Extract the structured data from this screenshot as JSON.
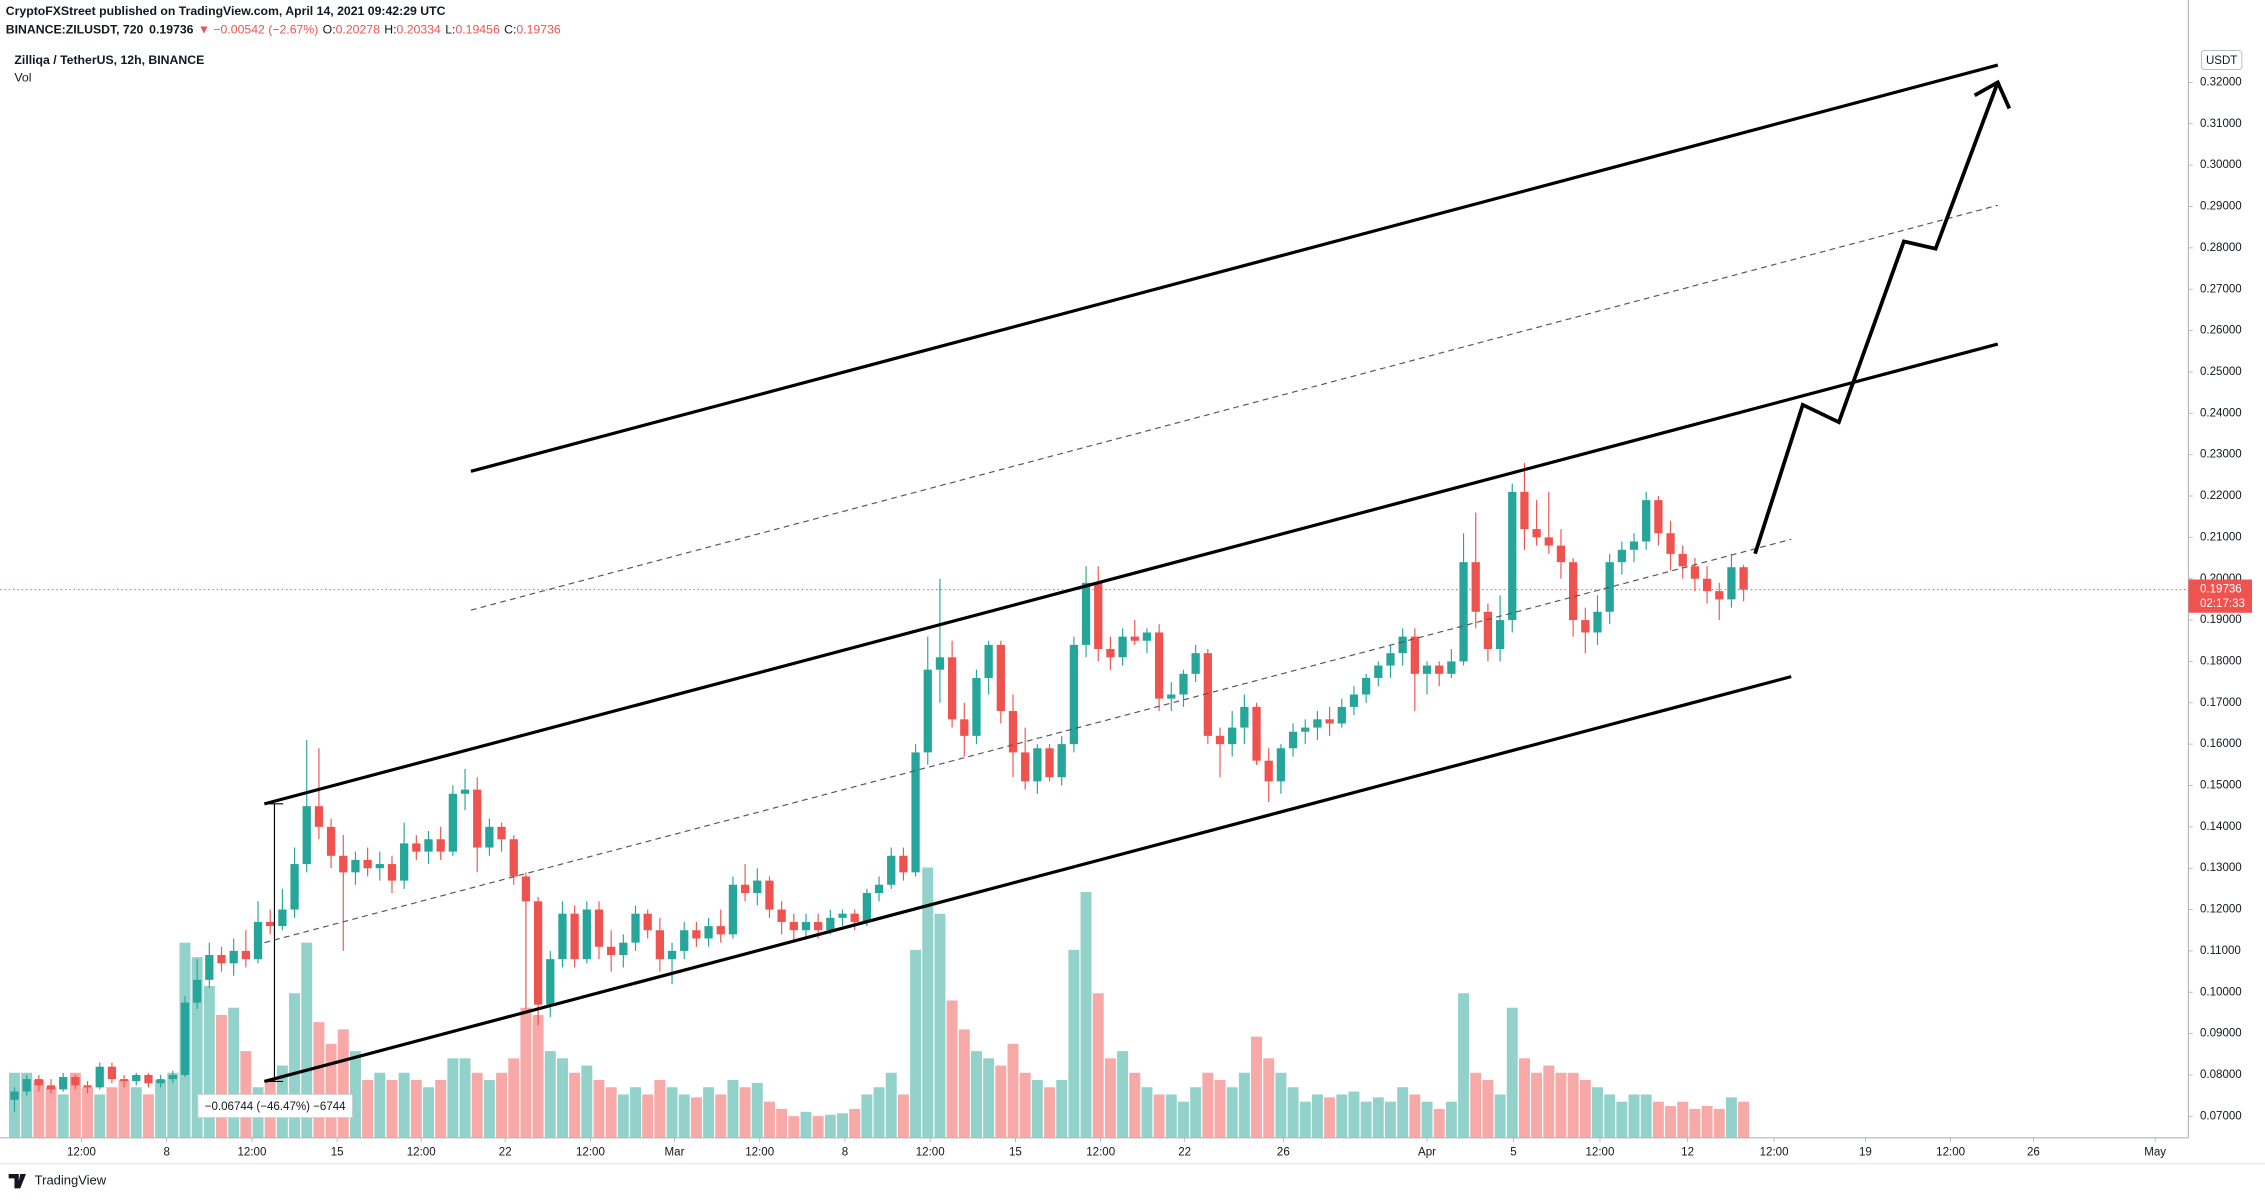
{
  "header": {
    "publisher": "CryptoFXStreet published on TradingView.com, April 14, 2021 09:42:29 UTC",
    "symbol": "BINANCE:ZILUSDT, 720",
    "change": "▼ −0.00542 (−2.67%)",
    "ohlc_names": [
      "O:",
      "H:",
      "L:",
      "C:"
    ]
  },
  "chart_data": {
    "type": "candlestick",
    "title": "Zilliqa / TetherUS, 12h, BINANCE",
    "volume_label": "Vol",
    "y_unit": "USDT",
    "countdown": "02:17:33",
    "measure_label": "−0.06744 (−46.47%) −6744",
    "up_color": "#26a69a",
    "down_color": "#ef5350",
    "volume_up_color": "#93d2cb",
    "volume_down_color": "#f7a9a7",
    "open": [
      0.074,
      0.076,
      0.079,
      0.0775,
      0.0765,
      0.0795,
      0.0775,
      0.077,
      0.082,
      0.079,
      0.0785,
      0.08,
      0.078,
      0.079,
      0.08,
      0.0975,
      0.103,
      0.109,
      0.107,
      0.11,
      0.108,
      0.117,
      0.116,
      0.12,
      0.131,
      0.145,
      0.14,
      0.133,
      0.129,
      0.132,
      0.13,
      0.131,
      0.127,
      0.136,
      0.134,
      0.137,
      0.134,
      0.148,
      0.149,
      0.135,
      0.14,
      0.137,
      0.128,
      0.122,
      0.097,
      0.108,
      0.119,
      0.108,
      0.12,
      0.111,
      0.109,
      0.112,
      0.119,
      0.115,
      0.108,
      0.11,
      0.115,
      0.113,
      0.116,
      0.114,
      0.126,
      0.124,
      0.127,
      0.12,
      0.117,
      0.115,
      0.117,
      0.115,
      0.118,
      0.119,
      0.117,
      0.124,
      0.126,
      0.133,
      0.129,
      0.158,
      0.178,
      0.181,
      0.166,
      0.162,
      0.176,
      0.184,
      0.168,
      0.158,
      0.151,
      0.159,
      0.152,
      0.16,
      0.184,
      0.199,
      0.183,
      0.181,
      0.186,
      0.185,
      0.187,
      0.171,
      0.172,
      0.177,
      0.182,
      0.162,
      0.16,
      0.164,
      0.169,
      0.156,
      0.151,
      0.159,
      0.163,
      0.164,
      0.166,
      0.165,
      0.169,
      0.172,
      0.176,
      0.179,
      0.182,
      0.186,
      0.177,
      0.179,
      0.177,
      0.18,
      0.204,
      0.192,
      0.183,
      0.19,
      0.221,
      0.212,
      0.21,
      0.208,
      0.204,
      0.19,
      0.187,
      0.192,
      0.204,
      0.207,
      0.209,
      0.219,
      0.211,
      0.206,
      0.203,
      0.2,
      0.197,
      0.195,
      0.20278
    ],
    "high": [
      0.077,
      0.08,
      0.08,
      0.079,
      0.0805,
      0.08,
      0.0785,
      0.083,
      0.083,
      0.08,
      0.0805,
      0.0805,
      0.08,
      0.081,
      0.099,
      0.108,
      0.112,
      0.111,
      0.113,
      0.115,
      0.122,
      0.12,
      0.125,
      0.135,
      0.161,
      0.159,
      0.142,
      0.138,
      0.134,
      0.135,
      0.134,
      0.133,
      0.141,
      0.138,
      0.139,
      0.14,
      0.15,
      0.154,
      0.152,
      0.142,
      0.141,
      0.138,
      0.129,
      0.123,
      0.11,
      0.122,
      0.121,
      0.122,
      0.122,
      0.115,
      0.114,
      0.121,
      0.12,
      0.118,
      0.112,
      0.117,
      0.117,
      0.118,
      0.12,
      0.128,
      0.131,
      0.13,
      0.128,
      0.122,
      0.119,
      0.119,
      0.119,
      0.12,
      0.12,
      0.12,
      0.125,
      0.128,
      0.135,
      0.135,
      0.16,
      0.186,
      0.2,
      0.185,
      0.17,
      0.178,
      0.185,
      0.185,
      0.172,
      0.164,
      0.16,
      0.16,
      0.162,
      0.186,
      0.203,
      0.203,
      0.186,
      0.188,
      0.19,
      0.188,
      0.189,
      0.175,
      0.178,
      0.184,
      0.183,
      0.164,
      0.168,
      0.172,
      0.17,
      0.159,
      0.16,
      0.165,
      0.166,
      0.168,
      0.169,
      0.171,
      0.174,
      0.177,
      0.18,
      0.184,
      0.188,
      0.188,
      0.18,
      0.18,
      0.183,
      0.211,
      0.216,
      0.194,
      0.196,
      0.223,
      0.228,
      0.219,
      0.221,
      0.212,
      0.205,
      0.193,
      0.196,
      0.206,
      0.209,
      0.211,
      0.221,
      0.22,
      0.214,
      0.208,
      0.205,
      0.203,
      0.199,
      0.206,
      0.20334
    ],
    "low": [
      0.071,
      0.075,
      0.076,
      0.0755,
      0.076,
      0.0765,
      0.0755,
      0.0765,
      0.078,
      0.077,
      0.0775,
      0.077,
      0.077,
      0.078,
      0.0795,
      0.096,
      0.101,
      0.105,
      0.104,
      0.106,
      0.107,
      0.114,
      0.115,
      0.118,
      0.129,
      0.137,
      0.13,
      0.11,
      0.126,
      0.128,
      0.127,
      0.124,
      0.125,
      0.132,
      0.131,
      0.132,
      0.133,
      0.144,
      0.129,
      0.133,
      0.134,
      0.126,
      0.096,
      0.092,
      0.094,
      0.106,
      0.106,
      0.107,
      0.108,
      0.105,
      0.106,
      0.11,
      0.113,
      0.105,
      0.102,
      0.108,
      0.111,
      0.111,
      0.112,
      0.113,
      0.122,
      0.121,
      0.118,
      0.114,
      0.112,
      0.113,
      0.113,
      0.114,
      0.116,
      0.115,
      0.116,
      0.122,
      0.125,
      0.127,
      0.128,
      0.155,
      0.17,
      0.164,
      0.157,
      0.16,
      0.172,
      0.165,
      0.152,
      0.149,
      0.148,
      0.151,
      0.15,
      0.158,
      0.181,
      0.18,
      0.178,
      0.179,
      0.184,
      0.182,
      0.168,
      0.168,
      0.169,
      0.175,
      0.16,
      0.152,
      0.157,
      0.16,
      0.155,
      0.146,
      0.148,
      0.157,
      0.16,
      0.161,
      0.162,
      0.164,
      0.167,
      0.17,
      0.174,
      0.176,
      0.179,
      0.168,
      0.172,
      0.174,
      0.176,
      0.179,
      0.188,
      0.18,
      0.18,
      0.187,
      0.207,
      0.208,
      0.206,
      0.2,
      0.186,
      0.182,
      0.184,
      0.189,
      0.201,
      0.204,
      0.207,
      0.208,
      0.202,
      0.2,
      0.197,
      0.194,
      0.19,
      0.193,
      0.19456
    ],
    "close": [
      0.076,
      0.079,
      0.0775,
      0.0765,
      0.0795,
      0.0775,
      0.077,
      0.082,
      0.079,
      0.0785,
      0.08,
      0.078,
      0.079,
      0.08,
      0.0975,
      0.103,
      0.109,
      0.107,
      0.11,
      0.108,
      0.117,
      0.116,
      0.12,
      0.131,
      0.145,
      0.14,
      0.133,
      0.129,
      0.132,
      0.13,
      0.131,
      0.127,
      0.136,
      0.134,
      0.137,
      0.134,
      0.148,
      0.149,
      0.135,
      0.14,
      0.137,
      0.128,
      0.122,
      0.097,
      0.108,
      0.119,
      0.108,
      0.12,
      0.111,
      0.109,
      0.112,
      0.119,
      0.115,
      0.108,
      0.11,
      0.115,
      0.113,
      0.116,
      0.114,
      0.126,
      0.124,
      0.127,
      0.12,
      0.117,
      0.115,
      0.117,
      0.115,
      0.118,
      0.119,
      0.117,
      0.124,
      0.126,
      0.133,
      0.129,
      0.158,
      0.178,
      0.181,
      0.166,
      0.162,
      0.176,
      0.184,
      0.168,
      0.158,
      0.151,
      0.159,
      0.152,
      0.16,
      0.184,
      0.199,
      0.183,
      0.181,
      0.186,
      0.185,
      0.187,
      0.171,
      0.172,
      0.177,
      0.182,
      0.162,
      0.16,
      0.164,
      0.169,
      0.156,
      0.151,
      0.159,
      0.163,
      0.164,
      0.166,
      0.165,
      0.169,
      0.172,
      0.176,
      0.179,
      0.182,
      0.186,
      0.177,
      0.179,
      0.177,
      0.18,
      0.204,
      0.192,
      0.183,
      0.19,
      0.221,
      0.212,
      0.21,
      0.208,
      0.204,
      0.19,
      0.187,
      0.192,
      0.204,
      0.207,
      0.209,
      0.219,
      0.211,
      0.206,
      0.203,
      0.2,
      0.197,
      0.195,
      0.20278,
      0.19736
    ],
    "volume": [
      45,
      45,
      40,
      35,
      30,
      45,
      35,
      30,
      35,
      40,
      35,
      30,
      40,
      45,
      135,
      125,
      105,
      85,
      90,
      60,
      35,
      40,
      50,
      100,
      135,
      80,
      65,
      75,
      60,
      40,
      45,
      40,
      45,
      40,
      35,
      40,
      55,
      55,
      45,
      40,
      45,
      55,
      90,
      85,
      60,
      55,
      45,
      50,
      40,
      35,
      30,
      35,
      30,
      40,
      35,
      30,
      28,
      35,
      30,
      40,
      35,
      38,
      25,
      20,
      15,
      18,
      15,
      16,
      17,
      20,
      30,
      35,
      45,
      30,
      130,
      187,
      155,
      95,
      75,
      60,
      55,
      50,
      65,
      45,
      40,
      35,
      40,
      130,
      170,
      100,
      55,
      60,
      45,
      35,
      30,
      30,
      25,
      35,
      45,
      40,
      35,
      45,
      70,
      55,
      45,
      35,
      25,
      30,
      28,
      30,
      32,
      25,
      28,
      25,
      35,
      30,
      25,
      20,
      25,
      100,
      45,
      40,
      30,
      90,
      55,
      45,
      50,
      45,
      45,
      40,
      35,
      30,
      25,
      30,
      30,
      25,
      22,
      25,
      20,
      22,
      20,
      28,
      25
    ],
    "volume_lim": [
      0,
      752
    ],
    "xlim": [
      -1.19,
      178.53
    ],
    "xticks": [
      {
        "value": 5.5,
        "label": "12:00"
      },
      {
        "value": 12.5,
        "label": "8"
      },
      {
        "value": 19.5,
        "label": "12:00"
      },
      {
        "value": 26.5,
        "label": "15"
      },
      {
        "value": 33.4,
        "label": "12:00"
      },
      {
        "value": 40.3,
        "label": "22"
      },
      {
        "value": 47.3,
        "label": "12:00"
      },
      {
        "value": 54.2,
        "label": "Mar"
      },
      {
        "value": 61.2,
        "label": "12:00"
      },
      {
        "value": 68.2,
        "label": "8"
      },
      {
        "value": 75.2,
        "label": "12:00"
      },
      {
        "value": 82.2,
        "label": "15"
      },
      {
        "value": 89.2,
        "label": "12:00"
      },
      {
        "value": 96.1,
        "label": "22"
      },
      {
        "value": 104.2,
        "label": "26"
      },
      {
        "value": 116,
        "label": "Apr"
      },
      {
        "value": 123.1,
        "label": "5"
      },
      {
        "value": 130.2,
        "label": "12:00"
      },
      {
        "value": 137.4,
        "label": "12"
      },
      {
        "value": 144.5,
        "label": "12:00"
      },
      {
        "value": 152,
        "label": "19"
      },
      {
        "value": 159,
        "label": "12:00"
      },
      {
        "value": 165.8,
        "label": "26"
      },
      {
        "value": 175.8,
        "label": "May"
      }
    ],
    "ylim": [
      0.0648,
      0.3277
    ],
    "yticks": [
      {
        "value": 0.07,
        "label": "0.07000"
      },
      {
        "value": 0.08,
        "label": "0.08000"
      },
      {
        "value": 0.09,
        "label": "0.09000"
      },
      {
        "value": 0.1,
        "label": "0.10000"
      },
      {
        "value": 0.11,
        "label": "0.11000"
      },
      {
        "value": 0.12,
        "label": "0.12000"
      },
      {
        "value": 0.13,
        "label": "0.13000"
      },
      {
        "value": 0.14,
        "label": "0.14000"
      },
      {
        "value": 0.15,
        "label": "0.15000"
      },
      {
        "value": 0.16,
        "label": "0.16000"
      },
      {
        "value": 0.17,
        "label": "0.17000"
      },
      {
        "value": 0.18,
        "label": "0.18000"
      },
      {
        "value": 0.19,
        "label": "0.19000"
      },
      {
        "value": 0.2,
        "label": "0.20000"
      },
      {
        "value": 0.21,
        "label": "0.21000"
      },
      {
        "value": 0.22,
        "label": "0.22000"
      },
      {
        "value": 0.23,
        "label": "0.23000"
      },
      {
        "value": 0.24,
        "label": "0.24000"
      },
      {
        "value": 0.25,
        "label": "0.25000"
      },
      {
        "value": 0.26,
        "label": "0.26000"
      },
      {
        "value": 0.27,
        "label": "0.27000"
      },
      {
        "value": 0.28,
        "label": "0.28000"
      },
      {
        "value": 0.29,
        "label": "0.29000"
      },
      {
        "value": 0.3,
        "label": "0.30000"
      },
      {
        "value": 0.31,
        "label": "0.31000"
      },
      {
        "value": 0.32,
        "label": "0.32000"
      }
    ]
  },
  "footer": {
    "logo": "TradingView"
  }
}
